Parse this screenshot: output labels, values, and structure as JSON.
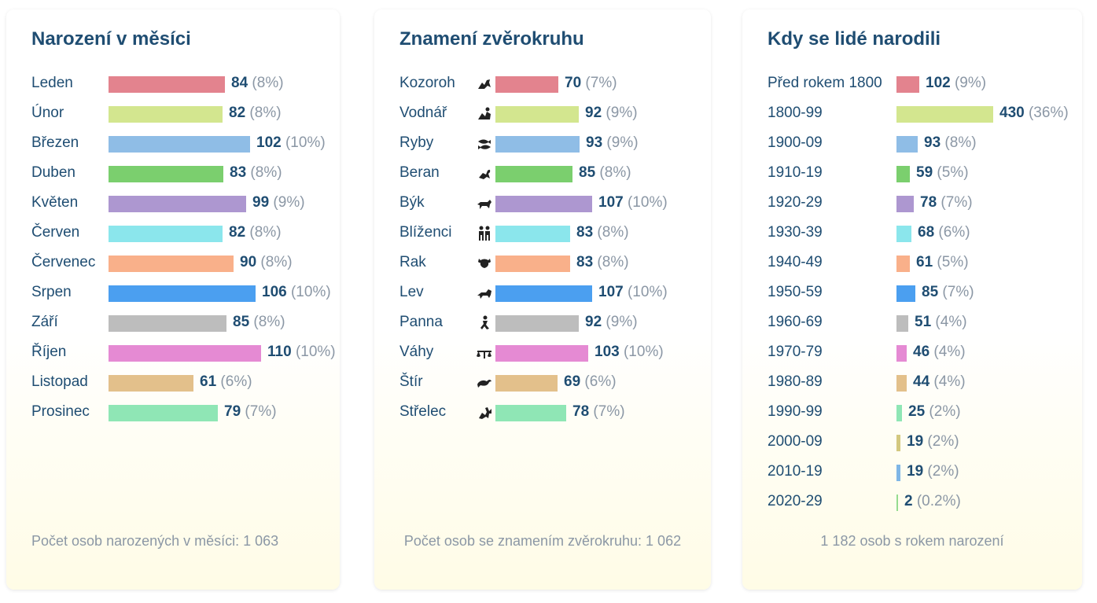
{
  "colors": [
    "#e3838e",
    "#d3e68f",
    "#8fbde6",
    "#7bcf6e",
    "#ad97d0",
    "#8be6ec",
    "#f9b08a",
    "#4b9ff0",
    "#bdbdbd",
    "#e58ad3",
    "#e3c08b",
    "#8fe6b5",
    "#d3c87f",
    "#7fb6e6",
    "#95dc8f"
  ],
  "charts": [
    {
      "title": "Narození v měsíci",
      "footer": "Počet osob narozených v měsíci: 1 063",
      "chart_data": {
        "type": "bar",
        "orientation": "horizontal",
        "categories": [
          "Leden",
          "Únor",
          "Březen",
          "Duben",
          "Květen",
          "Červen",
          "Červenec",
          "Srpen",
          "Září",
          "Říjen",
          "Listopad",
          "Prosinec"
        ],
        "values": [
          84,
          82,
          102,
          83,
          99,
          82,
          90,
          106,
          85,
          110,
          61,
          79
        ],
        "percent_labels": [
          "(8%)",
          "(8%)",
          "(10%)",
          "(8%)",
          "(9%)",
          "(8%)",
          "(8%)",
          "(10%)",
          "(8%)",
          "(10%)",
          "(6%)",
          "(7%)"
        ]
      }
    },
    {
      "title": "Znamení zvěrokruhu",
      "footer": "Počet osob se znamením zvěrokruhu: 1 062",
      "chart_data": {
        "type": "bar",
        "orientation": "horizontal",
        "categories": [
          "Kozoroh",
          "Vodnář",
          "Ryby",
          "Beran",
          "Býk",
          "Blíženci",
          "Rak",
          "Lev",
          "Panna",
          "Váhy",
          "Štír",
          "Střelec"
        ],
        "icons": [
          "capricorn-icon",
          "aquarius-icon",
          "pisces-icon",
          "aries-icon",
          "taurus-icon",
          "gemini-icon",
          "cancer-icon",
          "leo-icon",
          "virgo-icon",
          "libra-icon",
          "scorpio-icon",
          "sagittarius-icon"
        ],
        "values": [
          70,
          92,
          93,
          85,
          107,
          83,
          83,
          107,
          92,
          103,
          69,
          78
        ],
        "percent_labels": [
          "(7%)",
          "(9%)",
          "(9%)",
          "(8%)",
          "(10%)",
          "(8%)",
          "(8%)",
          "(10%)",
          "(9%)",
          "(10%)",
          "(6%)",
          "(7%)"
        ]
      }
    },
    {
      "title": "Kdy se lidé narodili",
      "footer": "1 182 osob s rokem narození",
      "chart_data": {
        "type": "bar",
        "orientation": "horizontal",
        "categories": [
          "Před rokem 1800",
          "1800-99",
          "1900-09",
          "1910-19",
          "1920-29",
          "1930-39",
          "1940-49",
          "1950-59",
          "1960-69",
          "1970-79",
          "1980-89",
          "1990-99",
          "2000-09",
          "2010-19",
          "2020-29"
        ],
        "values": [
          102,
          430,
          93,
          59,
          78,
          68,
          61,
          85,
          51,
          46,
          44,
          25,
          19,
          19,
          2
        ],
        "percent_labels": [
          "(9%)",
          "(36%)",
          "(8%)",
          "(5%)",
          "(7%)",
          "(6%)",
          "(5%)",
          "(7%)",
          "(4%)",
          "(4%)",
          "(4%)",
          "(2%)",
          "(2%)",
          "(2%)",
          "(0.2%)"
        ]
      }
    }
  ]
}
